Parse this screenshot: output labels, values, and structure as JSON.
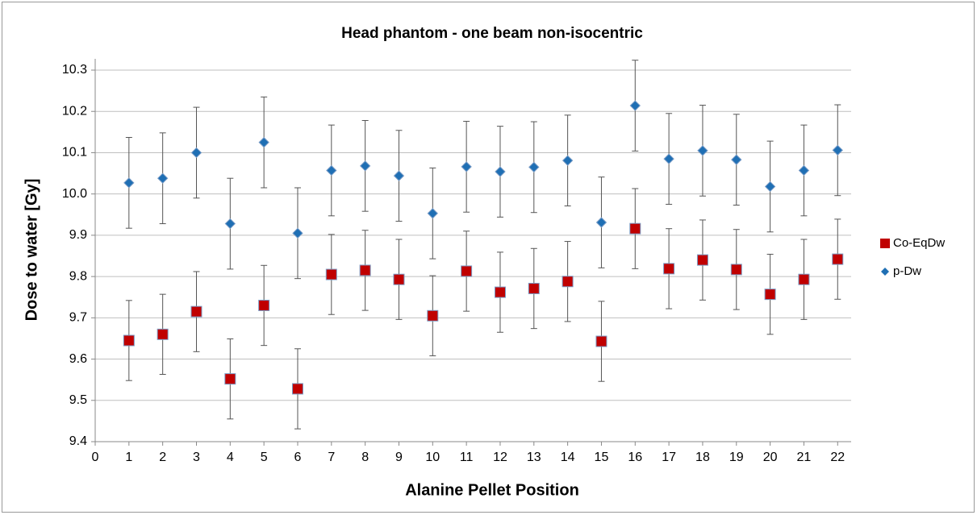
{
  "chart_data": {
    "type": "scatter",
    "title": "Head phantom - one beam non-isocentric",
    "x_label": "Alanine Pellet Position",
    "y_label": "Dose  to water  [Gy]",
    "x": [
      1,
      2,
      3,
      4,
      5,
      6,
      7,
      8,
      9,
      10,
      11,
      12,
      13,
      14,
      15,
      16,
      17,
      18,
      19,
      20,
      21,
      22
    ],
    "series": [
      {
        "name": "Co-EqDw",
        "color": "#c00000",
        "marker": "square",
        "values": [
          9.645,
          9.66,
          9.715,
          9.552,
          9.73,
          9.528,
          9.805,
          9.815,
          9.793,
          9.705,
          9.813,
          9.762,
          9.771,
          9.788,
          9.643,
          9.916,
          9.819,
          9.84,
          9.817,
          9.757,
          9.793,
          9.842
        ],
        "errors": [
          0.097,
          0.097,
          0.097,
          0.097,
          0.097,
          0.097,
          0.097,
          0.097,
          0.097,
          0.097,
          0.097,
          0.097,
          0.097,
          0.097,
          0.097,
          0.097,
          0.097,
          0.097,
          0.097,
          0.097,
          0.097,
          0.097
        ]
      },
      {
        "name": "p-Dw",
        "color": "#1f6fb4",
        "marker": "diamond",
        "values": [
          10.027,
          10.038,
          10.1,
          9.928,
          10.125,
          9.905,
          10.057,
          10.068,
          10.044,
          9.953,
          10.066,
          10.054,
          10.065,
          10.081,
          9.931,
          10.214,
          10.085,
          10.105,
          10.083,
          10.018,
          10.057,
          10.106
        ],
        "errors": [
          0.11,
          0.11,
          0.11,
          0.11,
          0.11,
          0.11,
          0.11,
          0.11,
          0.11,
          0.11,
          0.11,
          0.11,
          0.11,
          0.11,
          0.11,
          0.11,
          0.11,
          0.11,
          0.11,
          0.11,
          0.11,
          0.11
        ]
      }
    ],
    "xlim": [
      0,
      22.4
    ],
    "xticks": [
      0,
      1,
      2,
      3,
      4,
      5,
      6,
      7,
      8,
      9,
      10,
      11,
      12,
      13,
      14,
      15,
      16,
      17,
      18,
      19,
      20,
      21,
      22
    ],
    "ylim": [
      9.4,
      10.3
    ],
    "yticks": [
      9.4,
      9.5,
      9.6,
      9.7,
      9.8,
      9.9,
      {
        "value": 10,
        "label": "10.0"
      },
      10.1,
      10.2,
      10.3
    ],
    "grid": true,
    "legend": "right"
  }
}
